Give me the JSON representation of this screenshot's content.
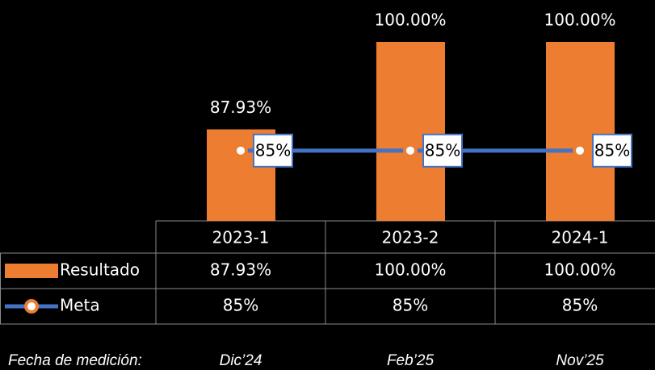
{
  "chart_data": {
    "type": "bar",
    "categories": [
      "2023-1",
      "2023-2",
      "2024-1"
    ],
    "series": [
      {
        "name": "Resultado",
        "type": "bar",
        "color": "#ED7D31",
        "values": [
          87.93,
          100,
          100
        ],
        "value_labels": [
          "87.93%",
          "100.00%",
          "100.00%"
        ]
      },
      {
        "name": "Meta",
        "type": "line",
        "color": "#4472C4",
        "marker_color": "#ED7D31",
        "values": [
          85,
          85,
          85
        ],
        "value_labels": [
          "85%",
          "85%",
          "85%"
        ]
      }
    ],
    "ylim": [
      75.3,
      100
    ],
    "footer_label": "Fecha de medición:",
    "footer_dates": [
      "Dic’24",
      "Feb’25",
      "Nov’25"
    ]
  }
}
